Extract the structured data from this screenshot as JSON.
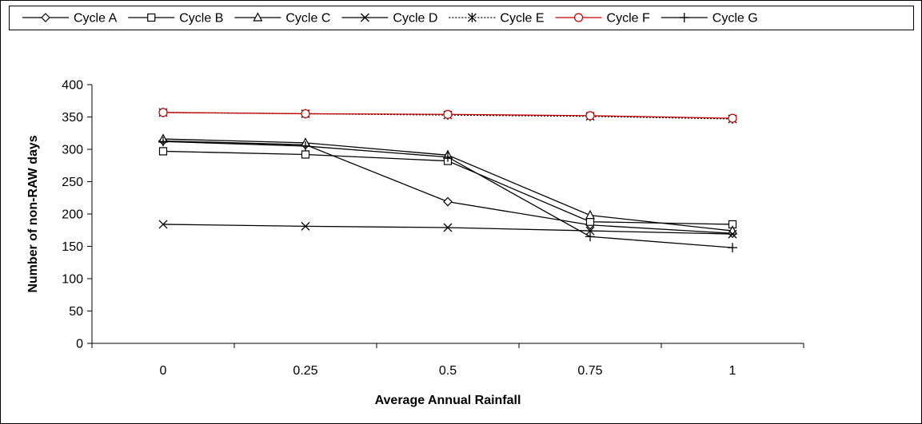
{
  "chart_data": {
    "type": "line",
    "title": "",
    "xlabel": "Average Annual Rainfall",
    "ylabel": "Number of non-RAW days",
    "x": [
      0,
      0.25,
      0.5,
      0.75,
      1
    ],
    "x_tick_labels": [
      "0",
      "0.25",
      "0.5",
      "0.75",
      "1"
    ],
    "ylim": [
      0,
      400
    ],
    "y_ticks": [
      0,
      50,
      100,
      150,
      200,
      250,
      300,
      350,
      400
    ],
    "grid": false,
    "legend_position": "top",
    "series": [
      {
        "name": "Cycle A",
        "marker": "diamond",
        "line_style": "solid",
        "color": "#000000",
        "values": [
          313,
          307,
          219,
          183,
          170
        ]
      },
      {
        "name": "Cycle B",
        "marker": "square",
        "line_style": "solid",
        "color": "#000000",
        "values": [
          297,
          292,
          282,
          188,
          184
        ]
      },
      {
        "name": "Cycle C",
        "marker": "triangle",
        "line_style": "solid",
        "color": "#000000",
        "values": [
          316,
          310,
          291,
          198,
          174
        ]
      },
      {
        "name": "Cycle D",
        "marker": "x",
        "line_style": "solid",
        "color": "#000000",
        "values": [
          184,
          181,
          179,
          174,
          169
        ]
      },
      {
        "name": "Cycle E",
        "marker": "asterisk",
        "line_style": "dotted",
        "color": "#000000",
        "values": [
          357,
          355,
          353,
          351,
          347
        ]
      },
      {
        "name": "Cycle F",
        "marker": "circle",
        "line_style": "solid",
        "color": "#c00000",
        "values": [
          357,
          355,
          354,
          352,
          348
        ]
      },
      {
        "name": "Cycle G",
        "marker": "plus",
        "line_style": "solid",
        "color": "#000000",
        "values": [
          312,
          305,
          288,
          165,
          148
        ]
      }
    ]
  }
}
